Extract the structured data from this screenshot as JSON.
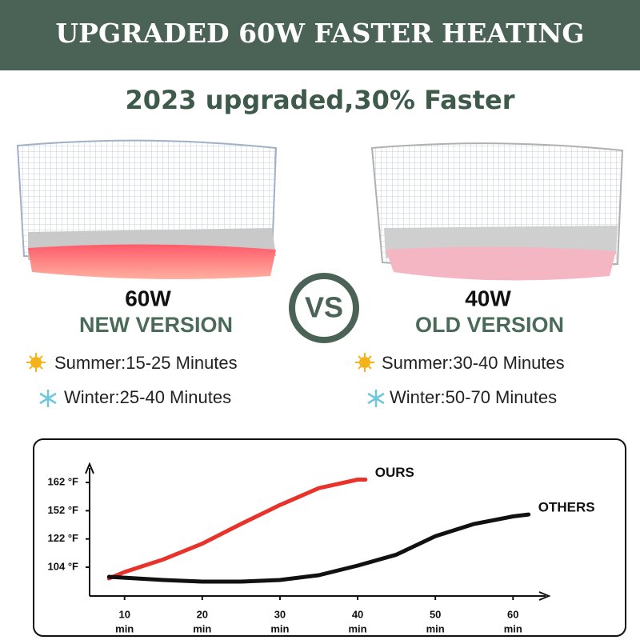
{
  "header": {
    "title": "UPGRADED 60W FASTER HEATING",
    "subtitle": "2023 upgraded,30% Faster"
  },
  "comparison": {
    "vs": "VS",
    "new": {
      "power": "60W",
      "version": "NEW VERSION",
      "summer": "Summer:15-25 Minutes",
      "winter": "Winter:25-40 Minutes"
    },
    "old": {
      "power": "40W",
      "version": "OLD VERSION",
      "summer": "Summer:30-40 Minutes",
      "winter": "Winter:50-70 Minutes"
    }
  },
  "chart_data": {
    "type": "line",
    "xlim": [
      5.5,
      64.5
    ],
    "xticks": [
      10,
      20,
      30,
      40,
      50,
      60
    ],
    "x_unit": "min",
    "ylim": [
      86,
      167
    ],
    "yticks": [
      {
        "value": 104,
        "label": "104 °F"
      },
      {
        "value": 122,
        "label": "122 °F"
      },
      {
        "value": 152,
        "label": "152 °F"
      },
      {
        "value": 162,
        "label": "162 °F"
      }
    ],
    "series": [
      {
        "name": "OURS",
        "color": "#e8322a",
        "x": [
          8,
          10,
          15,
          20,
          25,
          30,
          35,
          40,
          41
        ],
        "values": [
          97,
          101,
          109,
          119,
          138,
          154,
          160,
          163,
          163
        ]
      },
      {
        "name": "OTHERS",
        "color": "#111111",
        "x": [
          8,
          15,
          20,
          25,
          30,
          35,
          40,
          45,
          50,
          55,
          60,
          62
        ],
        "values": [
          98,
          96,
          95,
          95,
          96,
          99,
          105,
          112,
          125,
          138,
          146,
          148
        ]
      }
    ]
  }
}
